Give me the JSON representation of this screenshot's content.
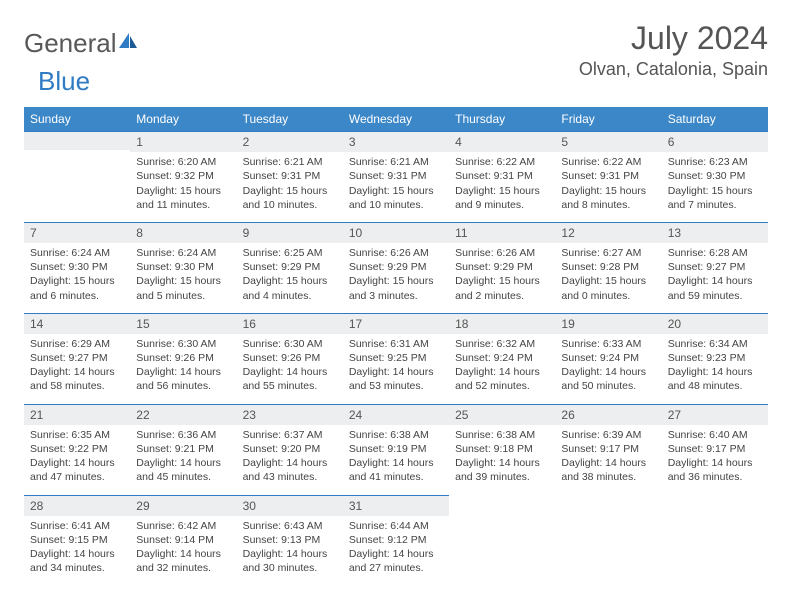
{
  "brand": {
    "name_part1": "General",
    "name_part2": "Blue",
    "logo_color1": "#2f7bc4",
    "logo_color2": "#1b5a96"
  },
  "header": {
    "title": "July 2024",
    "location": "Olvan, Catalonia, Spain"
  },
  "colors": {
    "header_bg": "#3b87c8",
    "border": "#2f7bc4",
    "daynum_bg": "#edeeef",
    "text": "#444444"
  },
  "weekdays": [
    "Sunday",
    "Monday",
    "Tuesday",
    "Wednesday",
    "Thursday",
    "Friday",
    "Saturday"
  ],
  "weeks": [
    [
      null,
      {
        "day": "1",
        "sunrise": "Sunrise: 6:20 AM",
        "sunset": "Sunset: 9:32 PM",
        "daylight1": "Daylight: 15 hours",
        "daylight2": "and 11 minutes."
      },
      {
        "day": "2",
        "sunrise": "Sunrise: 6:21 AM",
        "sunset": "Sunset: 9:31 PM",
        "daylight1": "Daylight: 15 hours",
        "daylight2": "and 10 minutes."
      },
      {
        "day": "3",
        "sunrise": "Sunrise: 6:21 AM",
        "sunset": "Sunset: 9:31 PM",
        "daylight1": "Daylight: 15 hours",
        "daylight2": "and 10 minutes."
      },
      {
        "day": "4",
        "sunrise": "Sunrise: 6:22 AM",
        "sunset": "Sunset: 9:31 PM",
        "daylight1": "Daylight: 15 hours",
        "daylight2": "and 9 minutes."
      },
      {
        "day": "5",
        "sunrise": "Sunrise: 6:22 AM",
        "sunset": "Sunset: 9:31 PM",
        "daylight1": "Daylight: 15 hours",
        "daylight2": "and 8 minutes."
      },
      {
        "day": "6",
        "sunrise": "Sunrise: 6:23 AM",
        "sunset": "Sunset: 9:30 PM",
        "daylight1": "Daylight: 15 hours",
        "daylight2": "and 7 minutes."
      }
    ],
    [
      {
        "day": "7",
        "sunrise": "Sunrise: 6:24 AM",
        "sunset": "Sunset: 9:30 PM",
        "daylight1": "Daylight: 15 hours",
        "daylight2": "and 6 minutes."
      },
      {
        "day": "8",
        "sunrise": "Sunrise: 6:24 AM",
        "sunset": "Sunset: 9:30 PM",
        "daylight1": "Daylight: 15 hours",
        "daylight2": "and 5 minutes."
      },
      {
        "day": "9",
        "sunrise": "Sunrise: 6:25 AM",
        "sunset": "Sunset: 9:29 PM",
        "daylight1": "Daylight: 15 hours",
        "daylight2": "and 4 minutes."
      },
      {
        "day": "10",
        "sunrise": "Sunrise: 6:26 AM",
        "sunset": "Sunset: 9:29 PM",
        "daylight1": "Daylight: 15 hours",
        "daylight2": "and 3 minutes."
      },
      {
        "day": "11",
        "sunrise": "Sunrise: 6:26 AM",
        "sunset": "Sunset: 9:29 PM",
        "daylight1": "Daylight: 15 hours",
        "daylight2": "and 2 minutes."
      },
      {
        "day": "12",
        "sunrise": "Sunrise: 6:27 AM",
        "sunset": "Sunset: 9:28 PM",
        "daylight1": "Daylight: 15 hours",
        "daylight2": "and 0 minutes."
      },
      {
        "day": "13",
        "sunrise": "Sunrise: 6:28 AM",
        "sunset": "Sunset: 9:27 PM",
        "daylight1": "Daylight: 14 hours",
        "daylight2": "and 59 minutes."
      }
    ],
    [
      {
        "day": "14",
        "sunrise": "Sunrise: 6:29 AM",
        "sunset": "Sunset: 9:27 PM",
        "daylight1": "Daylight: 14 hours",
        "daylight2": "and 58 minutes."
      },
      {
        "day": "15",
        "sunrise": "Sunrise: 6:30 AM",
        "sunset": "Sunset: 9:26 PM",
        "daylight1": "Daylight: 14 hours",
        "daylight2": "and 56 minutes."
      },
      {
        "day": "16",
        "sunrise": "Sunrise: 6:30 AM",
        "sunset": "Sunset: 9:26 PM",
        "daylight1": "Daylight: 14 hours",
        "daylight2": "and 55 minutes."
      },
      {
        "day": "17",
        "sunrise": "Sunrise: 6:31 AM",
        "sunset": "Sunset: 9:25 PM",
        "daylight1": "Daylight: 14 hours",
        "daylight2": "and 53 minutes."
      },
      {
        "day": "18",
        "sunrise": "Sunrise: 6:32 AM",
        "sunset": "Sunset: 9:24 PM",
        "daylight1": "Daylight: 14 hours",
        "daylight2": "and 52 minutes."
      },
      {
        "day": "19",
        "sunrise": "Sunrise: 6:33 AM",
        "sunset": "Sunset: 9:24 PM",
        "daylight1": "Daylight: 14 hours",
        "daylight2": "and 50 minutes."
      },
      {
        "day": "20",
        "sunrise": "Sunrise: 6:34 AM",
        "sunset": "Sunset: 9:23 PM",
        "daylight1": "Daylight: 14 hours",
        "daylight2": "and 48 minutes."
      }
    ],
    [
      {
        "day": "21",
        "sunrise": "Sunrise: 6:35 AM",
        "sunset": "Sunset: 9:22 PM",
        "daylight1": "Daylight: 14 hours",
        "daylight2": "and 47 minutes."
      },
      {
        "day": "22",
        "sunrise": "Sunrise: 6:36 AM",
        "sunset": "Sunset: 9:21 PM",
        "daylight1": "Daylight: 14 hours",
        "daylight2": "and 45 minutes."
      },
      {
        "day": "23",
        "sunrise": "Sunrise: 6:37 AM",
        "sunset": "Sunset: 9:20 PM",
        "daylight1": "Daylight: 14 hours",
        "daylight2": "and 43 minutes."
      },
      {
        "day": "24",
        "sunrise": "Sunrise: 6:38 AM",
        "sunset": "Sunset: 9:19 PM",
        "daylight1": "Daylight: 14 hours",
        "daylight2": "and 41 minutes."
      },
      {
        "day": "25",
        "sunrise": "Sunrise: 6:38 AM",
        "sunset": "Sunset: 9:18 PM",
        "daylight1": "Daylight: 14 hours",
        "daylight2": "and 39 minutes."
      },
      {
        "day": "26",
        "sunrise": "Sunrise: 6:39 AM",
        "sunset": "Sunset: 9:17 PM",
        "daylight1": "Daylight: 14 hours",
        "daylight2": "and 38 minutes."
      },
      {
        "day": "27",
        "sunrise": "Sunrise: 6:40 AM",
        "sunset": "Sunset: 9:17 PM",
        "daylight1": "Daylight: 14 hours",
        "daylight2": "and 36 minutes."
      }
    ],
    [
      {
        "day": "28",
        "sunrise": "Sunrise: 6:41 AM",
        "sunset": "Sunset: 9:15 PM",
        "daylight1": "Daylight: 14 hours",
        "daylight2": "and 34 minutes."
      },
      {
        "day": "29",
        "sunrise": "Sunrise: 6:42 AM",
        "sunset": "Sunset: 9:14 PM",
        "daylight1": "Daylight: 14 hours",
        "daylight2": "and 32 minutes."
      },
      {
        "day": "30",
        "sunrise": "Sunrise: 6:43 AM",
        "sunset": "Sunset: 9:13 PM",
        "daylight1": "Daylight: 14 hours",
        "daylight2": "and 30 minutes."
      },
      {
        "day": "31",
        "sunrise": "Sunrise: 6:44 AM",
        "sunset": "Sunset: 9:12 PM",
        "daylight1": "Daylight: 14 hours",
        "daylight2": "and 27 minutes."
      },
      null,
      null,
      null
    ]
  ]
}
